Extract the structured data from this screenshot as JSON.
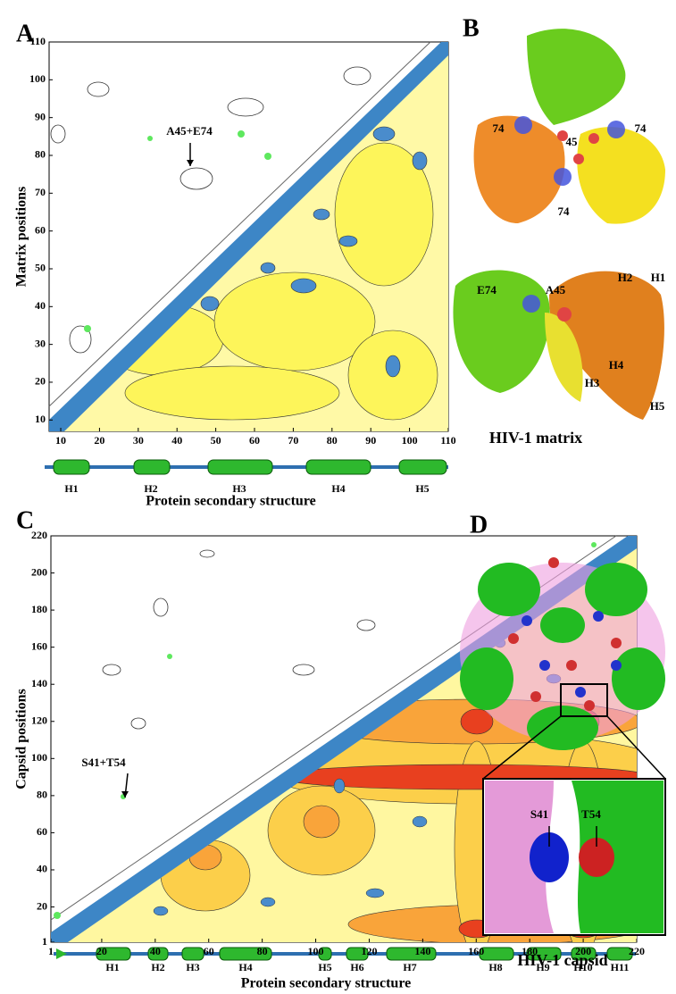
{
  "panel_labels": [
    "A",
    "B",
    "C",
    "D"
  ],
  "chart_data": [
    {
      "type": "contour",
      "ylabel": "Matrix positions",
      "xlabel": "Protein secondary structure",
      "xlim": [
        7,
        110
      ],
      "ylim": [
        7,
        110
      ],
      "xticks": [
        10,
        20,
        30,
        40,
        50,
        60,
        70,
        80,
        90,
        100,
        110
      ],
      "yticks": [
        10,
        20,
        30,
        40,
        50,
        60,
        70,
        80,
        90,
        100,
        110
      ],
      "annotation": "A45+E74",
      "secondary_structure": [
        "H1",
        "H2",
        "H3",
        "H4",
        "H5"
      ]
    },
    {
      "type": "contour",
      "ylabel": "Capsid positions",
      "xlabel": "Protein secondary structure",
      "xlim": [
        1,
        220
      ],
      "ylim": [
        1,
        220
      ],
      "xticks": [
        1,
        20,
        40,
        60,
        80,
        100,
        120,
        140,
        160,
        180,
        200,
        220
      ],
      "yticks": [
        1,
        20,
        40,
        60,
        80,
        100,
        120,
        140,
        160,
        180,
        200,
        220
      ],
      "annotation": "S41+T54",
      "secondary_structure": [
        "H1",
        "H2",
        "H3",
        "H4",
        "H5",
        "H6",
        "H7",
        "H8",
        "H9",
        "H10",
        "H11"
      ]
    }
  ],
  "structures": [
    {
      "title": "HIV-1 matrix",
      "labels": [
        "74",
        "45",
        "74",
        "74",
        "E74",
        "A45",
        "H2",
        "H1",
        "H4",
        "H3",
        "H5"
      ]
    },
    {
      "title": "HIV-1 capsid",
      "labels": [
        "S41",
        "T54"
      ]
    }
  ]
}
